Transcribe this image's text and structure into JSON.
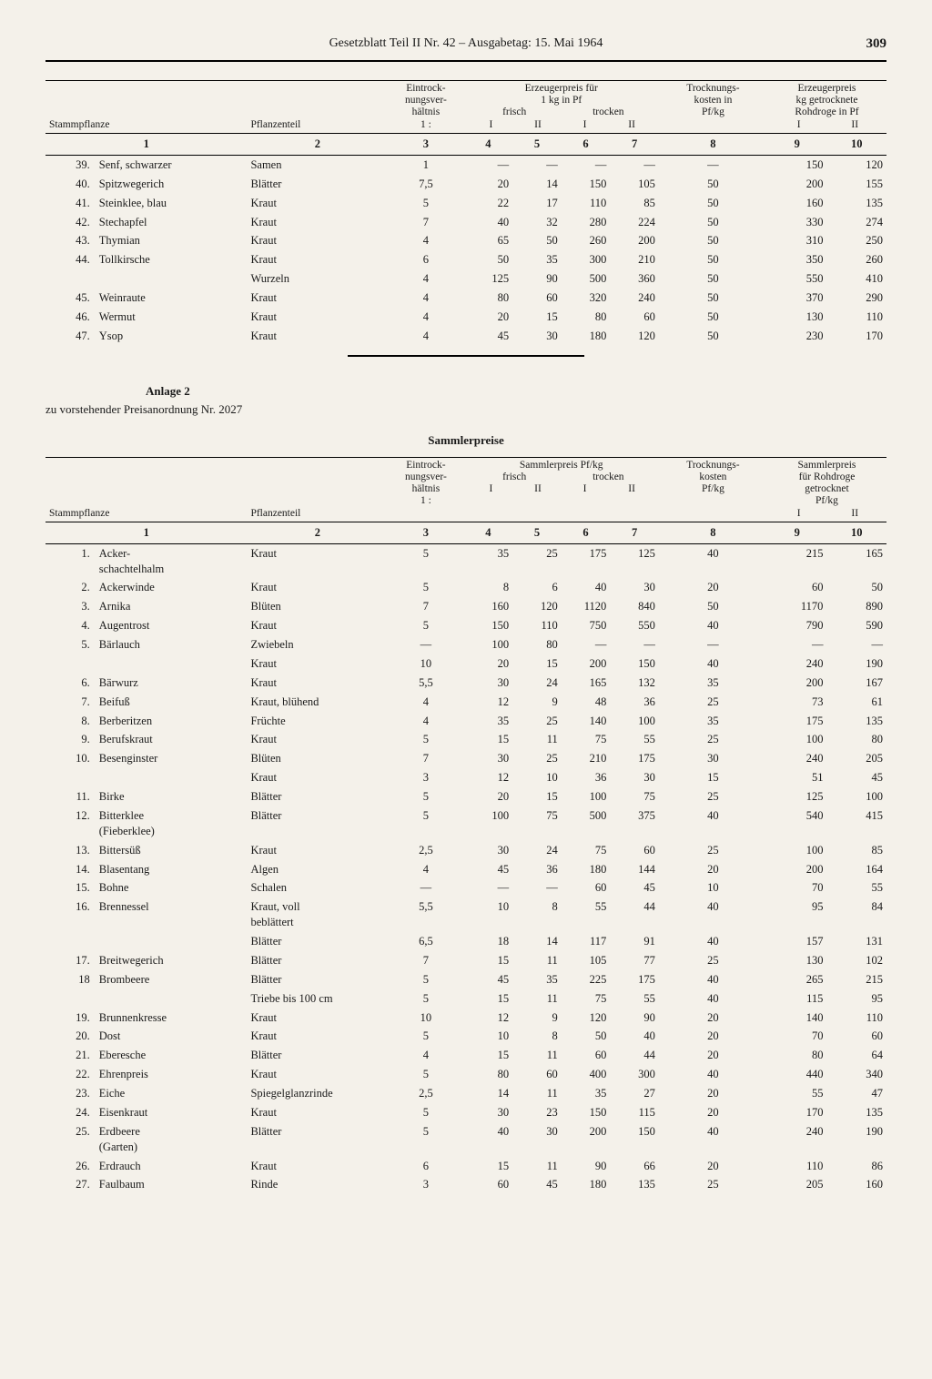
{
  "header": {
    "title": "Gesetzblatt Teil II Nr. 42 – Ausgabetag: 15. Mai 1964",
    "page_number": "309"
  },
  "table1": {
    "headers": {
      "stammpflanze": "Stammpflanze",
      "pflanzenteil": "Pflanzenteil",
      "eintrock": "Eintrock-\nnungsver-\nhältnis\n1 :",
      "erzeugerpreis_kg": "Erzeugerpreis für\n1 kg in Pf",
      "frisch": "frisch",
      "trocken": "trocken",
      "trocknungskosten": "Trocknungs-\nkosten in\nPf/kg",
      "erzeugerpreis_roh": "Erzeugerpreis\nkg getrocknete\nRohdroge in Pf",
      "I": "I",
      "II": "II"
    },
    "colnums": [
      "1",
      "2",
      "3",
      "4",
      "5",
      "6",
      "7",
      "8",
      "9",
      "10"
    ],
    "rows": [
      {
        "n": "39.",
        "name": "Senf, schwarzer",
        "teil": "Samen",
        "r": "1",
        "c4": "—",
        "c5": "—",
        "c6": "—",
        "c7": "—",
        "c8": "—",
        "c9": "150",
        "c10": "120"
      },
      {
        "n": "40.",
        "name": "Spitzwegerich",
        "teil": "Blätter",
        "r": "7,5",
        "c4": "20",
        "c5": "14",
        "c6": "150",
        "c7": "105",
        "c8": "50",
        "c9": "200",
        "c10": "155"
      },
      {
        "n": "41.",
        "name": "Steinklee, blau",
        "teil": "Kraut",
        "r": "5",
        "c4": "22",
        "c5": "17",
        "c6": "110",
        "c7": "85",
        "c8": "50",
        "c9": "160",
        "c10": "135"
      },
      {
        "n": "42.",
        "name": "Stechapfel",
        "teil": "Kraut",
        "r": "7",
        "c4": "40",
        "c5": "32",
        "c6": "280",
        "c7": "224",
        "c8": "50",
        "c9": "330",
        "c10": "274"
      },
      {
        "n": "43.",
        "name": "Thymian",
        "teil": "Kraut",
        "r": "4",
        "c4": "65",
        "c5": "50",
        "c6": "260",
        "c7": "200",
        "c8": "50",
        "c9": "310",
        "c10": "250"
      },
      {
        "n": "44.",
        "name": "Tollkirsche",
        "teil": "Kraut",
        "r": "6",
        "c4": "50",
        "c5": "35",
        "c6": "300",
        "c7": "210",
        "c8": "50",
        "c9": "350",
        "c10": "260"
      },
      {
        "n": "",
        "name": "",
        "teil": "Wurzeln",
        "r": "4",
        "c4": "125",
        "c5": "90",
        "c6": "500",
        "c7": "360",
        "c8": "50",
        "c9": "550",
        "c10": "410"
      },
      {
        "n": "45.",
        "name": "Weinraute",
        "teil": "Kraut",
        "r": "4",
        "c4": "80",
        "c5": "60",
        "c6": "320",
        "c7": "240",
        "c8": "50",
        "c9": "370",
        "c10": "290"
      },
      {
        "n": "46.",
        "name": "Wermut",
        "teil": "Kraut",
        "r": "4",
        "c4": "20",
        "c5": "15",
        "c6": "80",
        "c7": "60",
        "c8": "50",
        "c9": "130",
        "c10": "110"
      },
      {
        "n": "47.",
        "name": "Ysop",
        "teil": "Kraut",
        "r": "4",
        "c4": "45",
        "c5": "30",
        "c6": "180",
        "c7": "120",
        "c8": "50",
        "c9": "230",
        "c10": "170"
      }
    ]
  },
  "anlage": {
    "title": "Anlage 2",
    "subtitle": "zu vorstehender Preisanordnung Nr. 2027",
    "table_title": "Sammlerpreise"
  },
  "table2": {
    "headers": {
      "stammpflanze": "Stammpflanze",
      "pflanzenteil": "Pflanzenteil",
      "eintrock": "Eintrock-\nnungsver-\nhältnis\n1 :",
      "sammlerpreis": "Sammlerpreis Pf/kg",
      "frisch": "frisch",
      "trocken": "trocken",
      "trocknungskosten": "Trocknungs-\nkosten\nPf/kg",
      "sammlerpreis_roh": "Sammlerpreis\nfür Rohdroge\ngetrocknet\nPf/kg",
      "I": "I",
      "II": "II"
    },
    "colnums": [
      "1",
      "2",
      "3",
      "4",
      "5",
      "6",
      "7",
      "8",
      "9",
      "10"
    ],
    "rows": [
      {
        "n": "1.",
        "name": "Acker-\nschachtelhalm",
        "teil": "Kraut",
        "r": "5",
        "c4": "35",
        "c5": "25",
        "c6": "175",
        "c7": "125",
        "c8": "40",
        "c9": "215",
        "c10": "165"
      },
      {
        "n": "2.",
        "name": "Ackerwinde",
        "teil": "Kraut",
        "r": "5",
        "c4": "8",
        "c5": "6",
        "c6": "40",
        "c7": "30",
        "c8": "20",
        "c9": "60",
        "c10": "50"
      },
      {
        "n": "3.",
        "name": "Arnika",
        "teil": "Blüten",
        "r": "7",
        "c4": "160",
        "c5": "120",
        "c6": "1120",
        "c7": "840",
        "c8": "50",
        "c9": "1170",
        "c10": "890"
      },
      {
        "n": "4.",
        "name": "Augentrost",
        "teil": "Kraut",
        "r": "5",
        "c4": "150",
        "c5": "110",
        "c6": "750",
        "c7": "550",
        "c8": "40",
        "c9": "790",
        "c10": "590"
      },
      {
        "n": "5.",
        "name": "Bärlauch",
        "teil": "Zwiebeln",
        "r": "—",
        "c4": "100",
        "c5": "80",
        "c6": "—",
        "c7": "—",
        "c8": "—",
        "c9": "—",
        "c10": "—"
      },
      {
        "n": "",
        "name": "",
        "teil": "Kraut",
        "r": "10",
        "c4": "20",
        "c5": "15",
        "c6": "200",
        "c7": "150",
        "c8": "40",
        "c9": "240",
        "c10": "190"
      },
      {
        "n": "6.",
        "name": "Bärwurz",
        "teil": "Kraut",
        "r": "5,5",
        "c4": "30",
        "c5": "24",
        "c6": "165",
        "c7": "132",
        "c8": "35",
        "c9": "200",
        "c10": "167"
      },
      {
        "n": "7.",
        "name": "Beifuß",
        "teil": "Kraut, blühend",
        "r": "4",
        "c4": "12",
        "c5": "9",
        "c6": "48",
        "c7": "36",
        "c8": "25",
        "c9": "73",
        "c10": "61"
      },
      {
        "n": "8.",
        "name": "Berberitzen",
        "teil": "Früchte",
        "r": "4",
        "c4": "35",
        "c5": "25",
        "c6": "140",
        "c7": "100",
        "c8": "35",
        "c9": "175",
        "c10": "135"
      },
      {
        "n": "9.",
        "name": "Berufskraut",
        "teil": "Kraut",
        "r": "5",
        "c4": "15",
        "c5": "11",
        "c6": "75",
        "c7": "55",
        "c8": "25",
        "c9": "100",
        "c10": "80"
      },
      {
        "n": "10.",
        "name": "Besenginster",
        "teil": "Blüten",
        "r": "7",
        "c4": "30",
        "c5": "25",
        "c6": "210",
        "c7": "175",
        "c8": "30",
        "c9": "240",
        "c10": "205"
      },
      {
        "n": "",
        "name": "",
        "teil": "Kraut",
        "r": "3",
        "c4": "12",
        "c5": "10",
        "c6": "36",
        "c7": "30",
        "c8": "15",
        "c9": "51",
        "c10": "45"
      },
      {
        "n": "11.",
        "name": "Birke",
        "teil": "Blätter",
        "r": "5",
        "c4": "20",
        "c5": "15",
        "c6": "100",
        "c7": "75",
        "c8": "25",
        "c9": "125",
        "c10": "100"
      },
      {
        "n": "12.",
        "name": "Bitterklee\n(Fieberklee)",
        "teil": "Blätter",
        "r": "5",
        "c4": "100",
        "c5": "75",
        "c6": "500",
        "c7": "375",
        "c8": "40",
        "c9": "540",
        "c10": "415"
      },
      {
        "n": "13.",
        "name": "Bittersüß",
        "teil": "Kraut",
        "r": "2,5",
        "c4": "30",
        "c5": "24",
        "c6": "75",
        "c7": "60",
        "c8": "25",
        "c9": "100",
        "c10": "85"
      },
      {
        "n": "14.",
        "name": "Blasentang",
        "teil": "Algen",
        "r": "4",
        "c4": "45",
        "c5": "36",
        "c6": "180",
        "c7": "144",
        "c8": "20",
        "c9": "200",
        "c10": "164"
      },
      {
        "n": "15.",
        "name": "Bohne",
        "teil": "Schalen",
        "r": "—",
        "c4": "—",
        "c5": "—",
        "c6": "60",
        "c7": "45",
        "c8": "10",
        "c9": "70",
        "c10": "55"
      },
      {
        "n": "16.",
        "name": "Brennessel",
        "teil": "Kraut, voll\nbeblättert",
        "r": "5,5",
        "c4": "10",
        "c5": "8",
        "c6": "55",
        "c7": "44",
        "c8": "40",
        "c9": "95",
        "c10": "84"
      },
      {
        "n": "",
        "name": "",
        "teil": "Blätter",
        "r": "6,5",
        "c4": "18",
        "c5": "14",
        "c6": "117",
        "c7": "91",
        "c8": "40",
        "c9": "157",
        "c10": "131"
      },
      {
        "n": "17.",
        "name": "Breitwegerich",
        "teil": "Blätter",
        "r": "7",
        "c4": "15",
        "c5": "11",
        "c6": "105",
        "c7": "77",
        "c8": "25",
        "c9": "130",
        "c10": "102"
      },
      {
        "n": "18",
        "name": "Brombeere",
        "teil": "Blätter",
        "r": "5",
        "c4": "45",
        "c5": "35",
        "c6": "225",
        "c7": "175",
        "c8": "40",
        "c9": "265",
        "c10": "215"
      },
      {
        "n": "",
        "name": "",
        "teil": "Triebe bis 100 cm",
        "r": "5",
        "c4": "15",
        "c5": "11",
        "c6": "75",
        "c7": "55",
        "c8": "40",
        "c9": "115",
        "c10": "95"
      },
      {
        "n": "19.",
        "name": "Brunnenkresse",
        "teil": "Kraut",
        "r": "10",
        "c4": "12",
        "c5": "9",
        "c6": "120",
        "c7": "90",
        "c8": "20",
        "c9": "140",
        "c10": "110"
      },
      {
        "n": "20.",
        "name": "Dost",
        "teil": "Kraut",
        "r": "5",
        "c4": "10",
        "c5": "8",
        "c6": "50",
        "c7": "40",
        "c8": "20",
        "c9": "70",
        "c10": "60"
      },
      {
        "n": "21.",
        "name": "Eberesche",
        "teil": "Blätter",
        "r": "4",
        "c4": "15",
        "c5": "11",
        "c6": "60",
        "c7": "44",
        "c8": "20",
        "c9": "80",
        "c10": "64"
      },
      {
        "n": "22.",
        "name": "Ehrenpreis",
        "teil": "Kraut",
        "r": "5",
        "c4": "80",
        "c5": "60",
        "c6": "400",
        "c7": "300",
        "c8": "40",
        "c9": "440",
        "c10": "340"
      },
      {
        "n": "23.",
        "name": "Eiche",
        "teil": "Spiegelglanzrinde",
        "r": "2,5",
        "c4": "14",
        "c5": "11",
        "c6": "35",
        "c7": "27",
        "c8": "20",
        "c9": "55",
        "c10": "47"
      },
      {
        "n": "24.",
        "name": "Eisenkraut",
        "teil": "Kraut",
        "r": "5",
        "c4": "30",
        "c5": "23",
        "c6": "150",
        "c7": "115",
        "c8": "20",
        "c9": "170",
        "c10": "135"
      },
      {
        "n": "25.",
        "name": "Erdbeere\n(Garten)",
        "teil": "Blätter",
        "r": "5",
        "c4": "40",
        "c5": "30",
        "c6": "200",
        "c7": "150",
        "c8": "40",
        "c9": "240",
        "c10": "190"
      },
      {
        "n": "26.",
        "name": "Erdrauch",
        "teil": "Kraut",
        "r": "6",
        "c4": "15",
        "c5": "11",
        "c6": "90",
        "c7": "66",
        "c8": "20",
        "c9": "110",
        "c10": "86"
      },
      {
        "n": "27.",
        "name": "Faulbaum",
        "teil": "Rinde",
        "r": "3",
        "c4": "60",
        "c5": "45",
        "c6": "180",
        "c7": "135",
        "c8": "25",
        "c9": "205",
        "c10": "160"
      }
    ]
  }
}
